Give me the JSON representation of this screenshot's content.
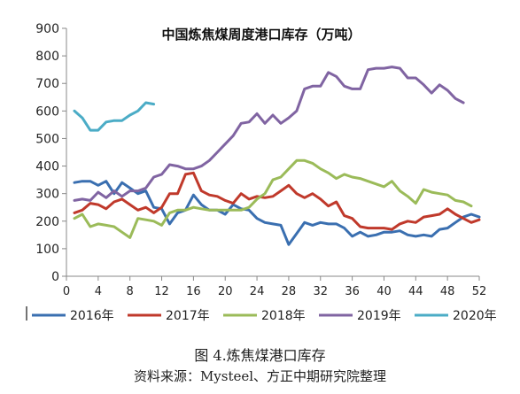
{
  "chart_data": {
    "type": "line",
    "title": "中国炼焦煤周度港口库存（万吨）",
    "xlabel": "",
    "ylabel": "",
    "xlim": [
      0,
      52
    ],
    "ylim": [
      0,
      900
    ],
    "x_ticks": [
      0,
      4,
      8,
      12,
      16,
      20,
      24,
      28,
      32,
      36,
      40,
      44,
      48,
      52
    ],
    "y_ticks": [
      0,
      100,
      200,
      300,
      400,
      500,
      600,
      700,
      800,
      900
    ],
    "grid": false,
    "legend_position": "bottom",
    "series": [
      {
        "name": "2016年",
        "color": "#3A6FB0",
        "x": [
          1,
          2,
          3,
          4,
          5,
          6,
          7,
          8,
          9,
          10,
          11,
          12,
          13,
          14,
          15,
          16,
          17,
          18,
          19,
          20,
          21,
          22,
          23,
          24,
          25,
          26,
          27,
          28,
          29,
          30,
          31,
          32,
          33,
          34,
          35,
          36,
          37,
          38,
          39,
          40,
          41,
          42,
          43,
          44,
          45,
          46,
          47,
          48,
          49,
          50,
          51,
          52
        ],
        "y": [
          340,
          345,
          345,
          330,
          345,
          300,
          340,
          320,
          300,
          310,
          250,
          245,
          190,
          230,
          240,
          295,
          260,
          240,
          240,
          225,
          260,
          245,
          240,
          210,
          195,
          190,
          185,
          115,
          155,
          195,
          185,
          195,
          190,
          190,
          175,
          145,
          160,
          145,
          150,
          160,
          160,
          165,
          150,
          145,
          150,
          145,
          170,
          175,
          195,
          215,
          225,
          215
        ]
      },
      {
        "name": "2017年",
        "color": "#C0392B",
        "x": [
          1,
          2,
          3,
          4,
          5,
          6,
          7,
          8,
          9,
          10,
          11,
          12,
          13,
          14,
          15,
          16,
          17,
          18,
          19,
          20,
          21,
          22,
          23,
          24,
          25,
          26,
          27,
          28,
          29,
          30,
          31,
          32,
          33,
          34,
          35,
          36,
          37,
          38,
          39,
          40,
          41,
          42,
          43,
          44,
          45,
          46,
          47,
          48,
          49,
          50,
          51,
          52
        ],
        "y": [
          230,
          240,
          265,
          260,
          245,
          270,
          280,
          260,
          240,
          250,
          230,
          250,
          300,
          300,
          370,
          375,
          310,
          295,
          290,
          275,
          265,
          300,
          280,
          290,
          285,
          290,
          310,
          330,
          300,
          285,
          300,
          280,
          255,
          270,
          220,
          210,
          180,
          175,
          175,
          175,
          170,
          190,
          200,
          195,
          215,
          220,
          225,
          245,
          225,
          210,
          195,
          205
        ]
      },
      {
        "name": "2018年",
        "color": "#9BBB59",
        "x": [
          1,
          2,
          3,
          4,
          5,
          6,
          7,
          8,
          9,
          10,
          11,
          12,
          13,
          14,
          15,
          16,
          17,
          18,
          19,
          20,
          21,
          22,
          23,
          24,
          25,
          26,
          27,
          28,
          29,
          30,
          31,
          32,
          33,
          34,
          35,
          36,
          37,
          38,
          39,
          40,
          41,
          42,
          43,
          44,
          45,
          46,
          47,
          48,
          49,
          50,
          51
        ],
        "y": [
          210,
          225,
          180,
          190,
          185,
          180,
          160,
          140,
          210,
          205,
          200,
          185,
          230,
          240,
          240,
          250,
          245,
          240,
          240,
          240,
          240,
          240,
          250,
          280,
          300,
          350,
          360,
          390,
          420,
          420,
          410,
          390,
          375,
          355,
          370,
          360,
          355,
          345,
          335,
          325,
          345,
          310,
          290,
          265,
          315,
          305,
          300,
          295,
          275,
          270,
          255
        ]
      },
      {
        "name": "2019年",
        "color": "#8064A2",
        "x": [
          1,
          2,
          3,
          4,
          5,
          6,
          7,
          8,
          9,
          10,
          11,
          12,
          13,
          14,
          15,
          16,
          17,
          18,
          19,
          20,
          21,
          22,
          23,
          24,
          25,
          26,
          27,
          28,
          29,
          30,
          31,
          32,
          33,
          34,
          35,
          36,
          37,
          38,
          39,
          40,
          41,
          42,
          43,
          44,
          45,
          46,
          47,
          48,
          49,
          50
        ],
        "y": [
          275,
          280,
          275,
          305,
          285,
          310,
          290,
          310,
          310,
          320,
          360,
          370,
          405,
          400,
          390,
          390,
          400,
          420,
          450,
          480,
          510,
          555,
          560,
          590,
          555,
          585,
          555,
          575,
          600,
          680,
          690,
          690,
          740,
          725,
          690,
          680,
          680,
          750,
          755,
          755,
          760,
          755,
          720,
          720,
          695,
          665,
          695,
          675,
          645,
          630
        ]
      },
      {
        "name": "2020年",
        "color": "#4BACC6",
        "x": [
          1,
          2,
          3,
          4,
          5,
          6,
          7,
          8,
          9,
          10,
          11
        ],
        "y": [
          600,
          575,
          530,
          530,
          560,
          565,
          565,
          585,
          600,
          630,
          625
        ]
      }
    ]
  },
  "caption": {
    "figure": "图 4.炼焦煤港口库存",
    "source": "资料来源：Mysteel、方正中期研究院整理"
  }
}
